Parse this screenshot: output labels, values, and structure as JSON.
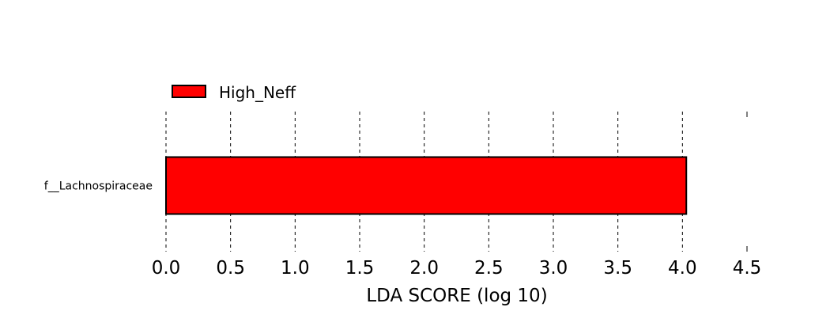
{
  "chart_data": {
    "type": "bar",
    "orientation": "horizontal",
    "categories": [
      "f__Lachnospiraceae"
    ],
    "series": [
      {
        "name": "High_Neff",
        "values": [
          4.03
        ],
        "color": "#ff0000"
      }
    ],
    "xlabel": "LDA SCORE (log 10)",
    "xlim": [
      0.0,
      4.5
    ],
    "xticks": [
      "0.0",
      "0.5",
      "1.0",
      "1.5",
      "2.0",
      "2.5",
      "3.0",
      "3.5",
      "4.0",
      "4.5"
    ],
    "grid": "vertical dashed",
    "legend_position": "top-left",
    "bar_edge_color": "#000000"
  }
}
